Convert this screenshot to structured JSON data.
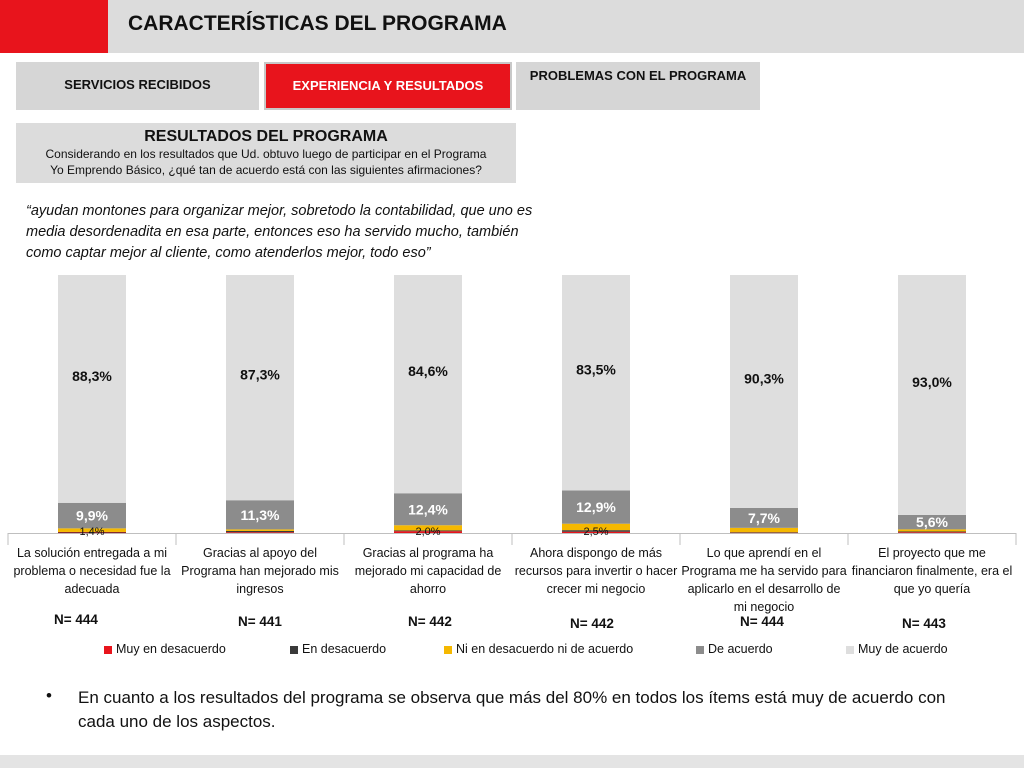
{
  "header": {
    "title": "CARACTERÍSTICAS DEL PROGRAMA"
  },
  "tabs": [
    {
      "label": "SERVICIOS RECIBIDOS"
    },
    {
      "label": "EXPERIENCIA Y RESULTADOS"
    },
    {
      "label": "PROBLEMAS CON EL PROGRAMA"
    }
  ],
  "results_box": {
    "title": "RESULTADOS DEL PROGRAMA",
    "question_line1": "Considerando en los resultados que Ud. obtuvo luego de participar en el Programa",
    "question_line2": "Yo Emprendo Básico, ¿qué tan de acuerdo está con las siguientes afirmaciones?"
  },
  "quote": "“ayudan montones para organizar mejor, sobretodo la contabilidad, que uno es media desordenadita en esa parte, entonces eso ha servido mucho, también como captar mejor al cliente, como atenderlos mejor, todo eso”",
  "colors": {
    "muy_desacuerdo": "#e8141c",
    "desacuerdo": "#3a3a3a",
    "ni": "#f5b800",
    "de_acuerdo": "#8c8c8c",
    "muy_acuerdo": "#dedede",
    "accent": "#e8141c"
  },
  "chart_data": {
    "type": "bar",
    "stacked": true,
    "categories": [
      "La solución entregada a mi problema o necesidad fue la adecuada",
      "Gracias al apoyo del Programa han mejorado mis ingresos",
      "Gracias al programa ha mejorado mi capacidad de ahorro",
      "Ahora dispongo de más recursos para invertir o hacer crecer mi negocio",
      "Lo que aprendí en el Programa me ha servido para aplicarlo en el desarrollo de mi negocio",
      "El proyecto que me financiaron finalmente, era el que yo quería"
    ],
    "n_labels": [
      "N= 444",
      "N= 441",
      "N= 442",
      "N= 442",
      "N= 444",
      "N= 443"
    ],
    "series": [
      {
        "name": "Muy en desacuerdo",
        "values": [
          0.2,
          0.3,
          0.7,
          0.5,
          0.2,
          0.3
        ]
      },
      {
        "name": "En desacuerdo",
        "values": [
          0.2,
          0.5,
          0.3,
          0.6,
          0.1,
          0.3
        ]
      },
      {
        "name": "Ni en desacuerdo ni de acuerdo",
        "values": [
          1.4,
          0.6,
          2.0,
          2.5,
          1.7,
          0.8
        ]
      },
      {
        "name": "De acuerdo",
        "values": [
          9.9,
          11.3,
          12.4,
          12.9,
          7.7,
          5.6
        ]
      },
      {
        "name": "Muy de acuerdo",
        "values": [
          88.3,
          87.3,
          84.6,
          83.5,
          90.3,
          93.0
        ]
      }
    ],
    "labels": {
      "muy_acuerdo": [
        "88,3%",
        "87,3%",
        "84,6%",
        "83,5%",
        "90,3%",
        "93,0%"
      ],
      "de_acuerdo": [
        "9,9%",
        "11,3%",
        "12,4%",
        "12,9%",
        "7,7%",
        "5,6%"
      ],
      "ni": [
        "1,4%",
        "",
        "2,0%",
        "2,5%",
        "",
        ""
      ]
    },
    "ylim": [
      0,
      100
    ]
  },
  "bullet": "En cuanto a los resultados del programa se observa que más del 80% en todos los ítems está muy de acuerdo con cada uno de los aspectos."
}
